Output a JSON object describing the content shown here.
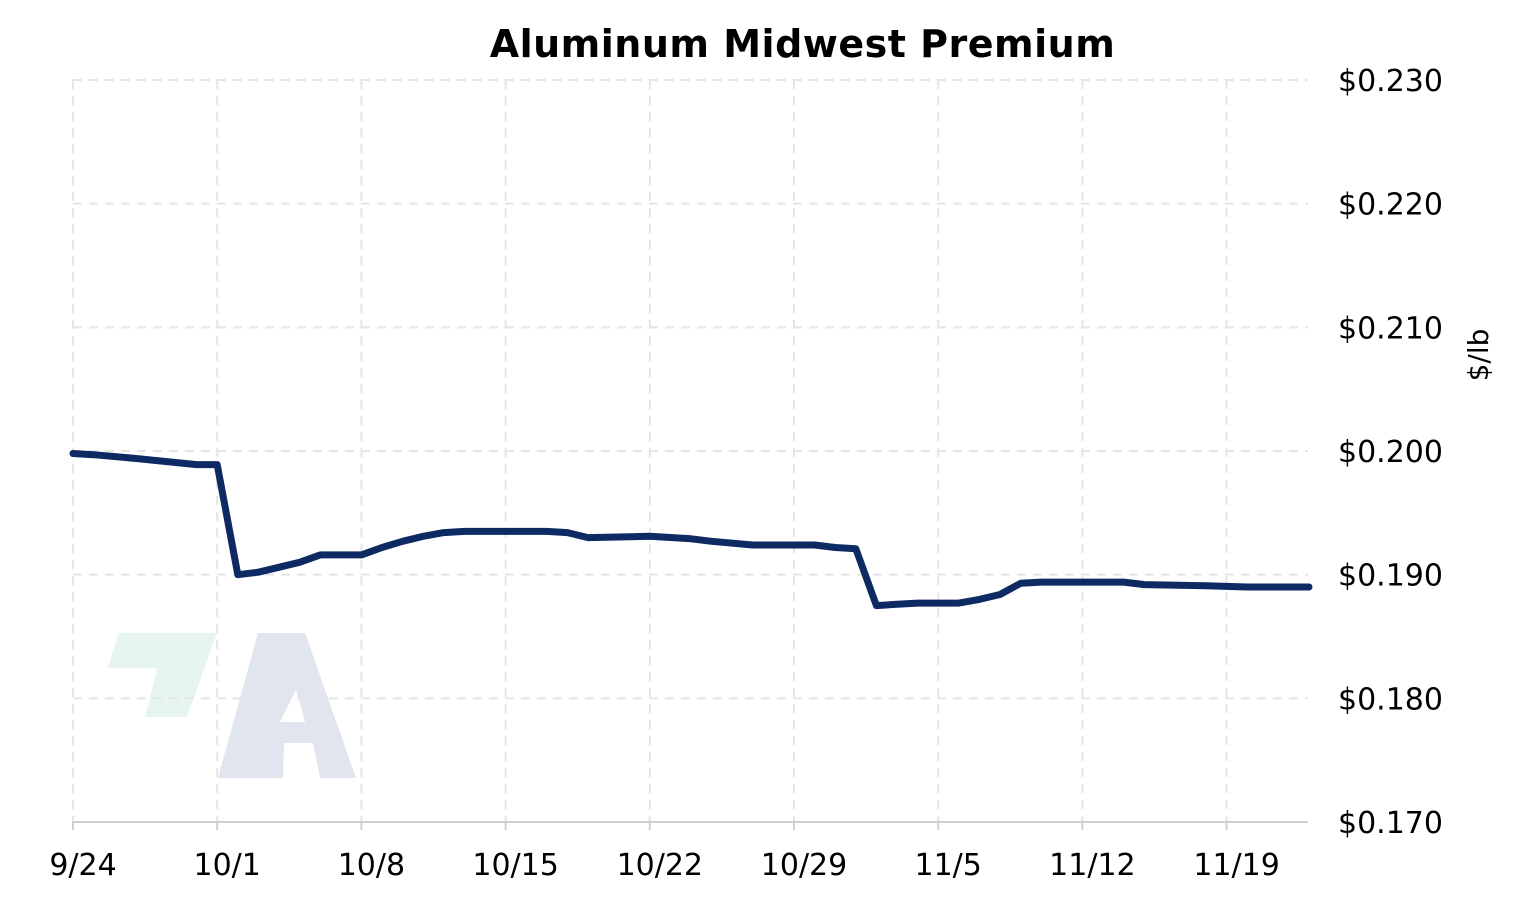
{
  "chart_data": {
    "type": "line",
    "title": "Aluminum Midwest Premium",
    "xlabel": "",
    "ylabel": "$/lb",
    "ylim": [
      0.17,
      0.23
    ],
    "y_ticks": [
      0.17,
      0.18,
      0.19,
      0.2,
      0.21,
      0.22,
      0.23
    ],
    "y_tick_labels": [
      "$0.170",
      "$0.180",
      "$0.190",
      "$0.200",
      "$0.210",
      "$0.220",
      "$0.230"
    ],
    "y_axis_side": "right",
    "x_ticks": [
      "2024-09-24",
      "2024-10-01",
      "2024-10-08",
      "2024-10-15",
      "2024-10-22",
      "2024-10-29",
      "2024-11-05",
      "2024-11-12",
      "2024-11-19"
    ],
    "x_tick_labels": [
      "9/24",
      "10/1",
      "10/8",
      "10/15",
      "10/22",
      "10/29",
      "11/5",
      "11/12",
      "11/19"
    ],
    "xlim": [
      "2024-09-24",
      "2024-11-23"
    ],
    "grid": true,
    "line_color": "#0d2a63",
    "grid_color": "#e5e5e5",
    "series": [
      {
        "x": [
          "2024-09-24",
          "2024-09-25",
          "2024-09-27",
          "2024-09-30",
          "2024-10-01",
          "2024-10-02",
          "2024-10-03",
          "2024-10-05",
          "2024-10-06",
          "2024-10-07",
          "2024-10-08",
          "2024-10-09",
          "2024-10-10",
          "2024-10-11",
          "2024-10-12",
          "2024-10-13",
          "2024-10-17",
          "2024-10-18",
          "2024-10-19",
          "2024-10-22",
          "2024-10-24",
          "2024-10-25",
          "2024-10-27",
          "2024-10-28",
          "2024-10-30",
          "2024-10-31",
          "2024-11-01",
          "2024-11-02",
          "2024-11-03",
          "2024-11-04",
          "2024-11-06",
          "2024-11-07",
          "2024-11-08",
          "2024-11-09",
          "2024-11-10",
          "2024-11-12",
          "2024-11-14",
          "2024-11-15",
          "2024-11-18",
          "2024-11-20",
          "2024-11-21",
          "2024-11-23"
        ],
        "values": [
          0.1998,
          0.1997,
          0.1994,
          0.1989,
          0.1989,
          0.19,
          0.1902,
          0.191,
          0.1916,
          0.1916,
          0.1916,
          0.1922,
          0.1927,
          0.1931,
          0.1934,
          0.1935,
          0.1935,
          0.1934,
          0.193,
          0.1931,
          0.1929,
          0.1927,
          0.1924,
          0.1924,
          0.1924,
          0.1922,
          0.1921,
          0.1875,
          0.1876,
          0.1877,
          0.1877,
          0.188,
          0.1884,
          0.1893,
          0.1894,
          0.1894,
          0.1894,
          0.1892,
          0.1891,
          0.189,
          0.189,
          0.189
        ]
      }
    ]
  },
  "watermark": {
    "text": "A",
    "colors": [
      "#e6f6ee",
      "#e1e6ee"
    ]
  }
}
